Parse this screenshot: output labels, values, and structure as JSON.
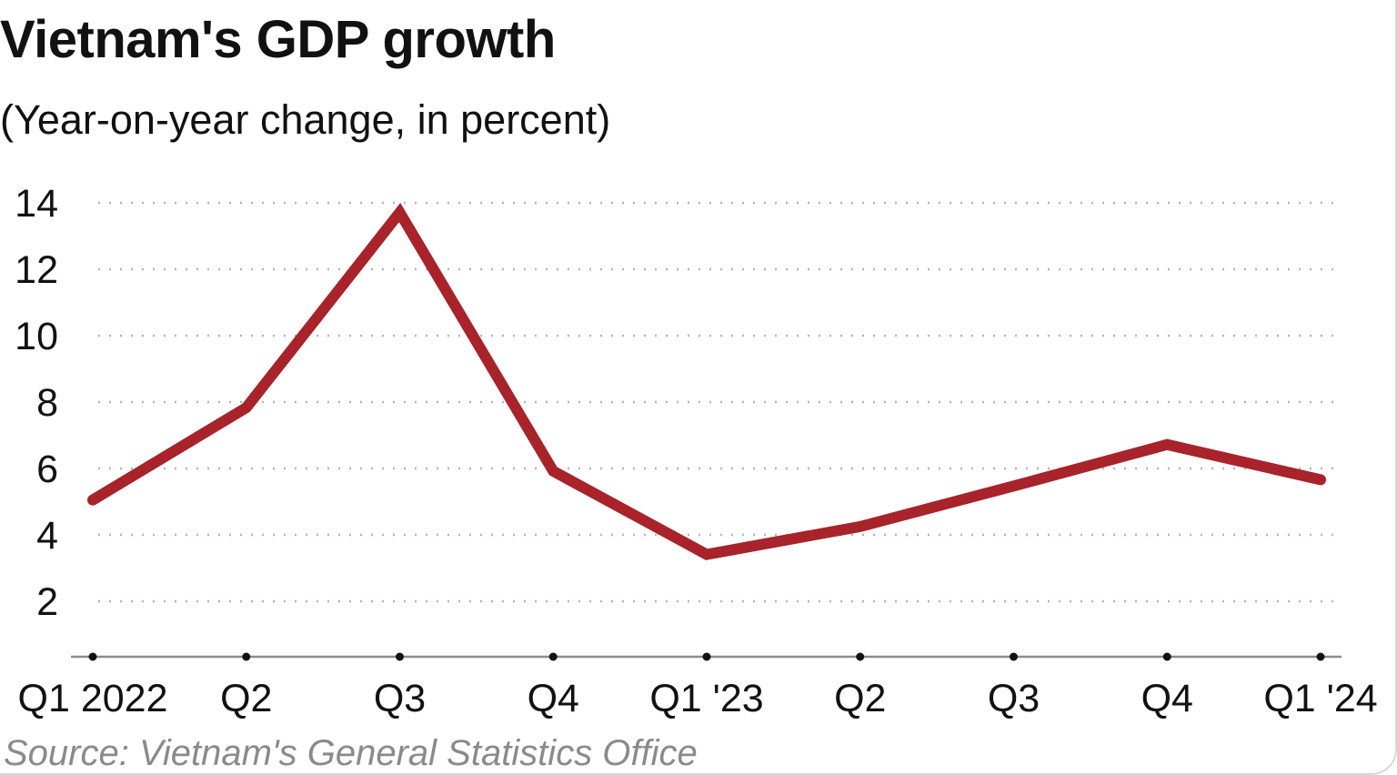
{
  "chart_data": {
    "type": "line",
    "title": "Vietnam's GDP growth",
    "subtitle": "(Year-on-year change, in percent)",
    "xlabel": "",
    "ylabel": "",
    "categories": [
      "Q1 2022",
      "Q2",
      "Q3",
      "Q4",
      "Q1 '23",
      "Q2",
      "Q3",
      "Q4",
      "Q1 '24"
    ],
    "series": [
      {
        "name": "GDP growth (YoY %)",
        "values": [
          5.05,
          7.83,
          13.71,
          5.92,
          3.41,
          4.25,
          5.47,
          6.72,
          5.66
        ],
        "color": "#a8232a"
      }
    ],
    "yticks": [
      2,
      4,
      6,
      8,
      10,
      12,
      14
    ],
    "ytick_labels": [
      "2",
      "4",
      "6",
      "8",
      "10",
      "12",
      "14"
    ],
    "ylim": [
      0.33,
      14
    ],
    "grid": true,
    "grid_style": "dotted horizontal",
    "legend": "none",
    "source": "Source: Vietnam's General Statistics Office"
  }
}
